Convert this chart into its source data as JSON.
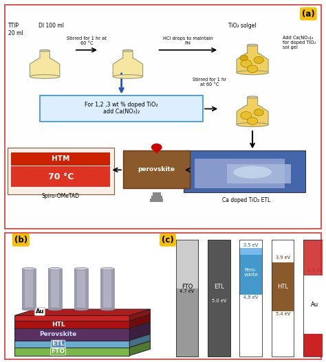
{
  "panel_a_label": "(a)",
  "panel_b_label": "(b)",
  "panel_c_label": "(c)",
  "border_color": "#e05050",
  "flask_light": "#f5e6a0",
  "flask_gold": "#e8c840",
  "labels_ttip": "TTIP\n20 ml",
  "labels_di": "DI 100 ml",
  "labels_stir1": "Stirred for 1 hr at\n60 °C",
  "labels_hcl": "HCl drops to maintain\nPH",
  "labels_tio2_solgel": "TiO₂ solgel",
  "labels_add_ca": "Add Ca(NO₃)₂\nfor doped TiO₂\nsol gel",
  "labels_box": "For 1,2 ,3 wt % doped TiO₂\nadd Ca(NO₃)₂",
  "labels_stir2": "Stirred for 1 hr\nat 60 °C",
  "labels_ca_etl": "Ca doped TiO₂ ETL",
  "labels_htm": "HTM",
  "labels_temp": "70 °C",
  "labels_spiro": "Spiro-OMeTAD",
  "labels_perovskite": "perovskite"
}
